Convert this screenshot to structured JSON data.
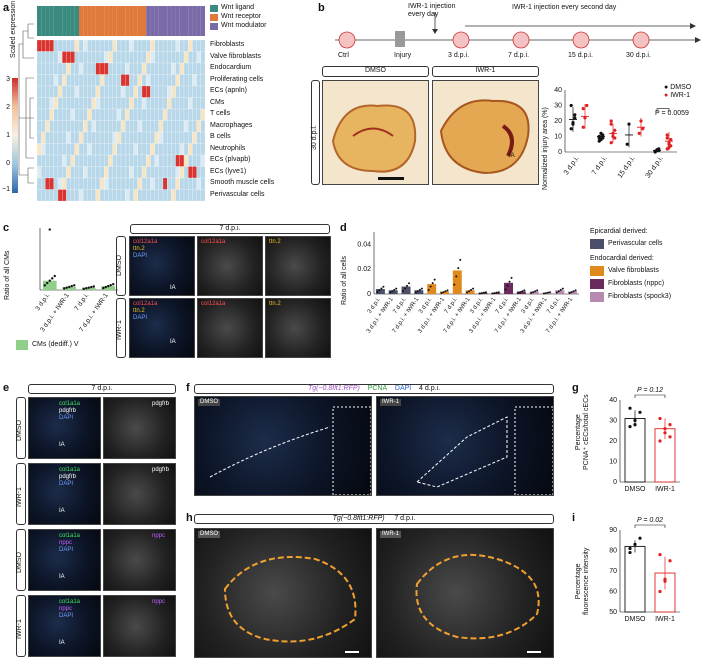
{
  "panel_labels": [
    "a",
    "b",
    "c",
    "d",
    "e",
    "f",
    "g",
    "h",
    "i"
  ],
  "panel_a": {
    "legend": [
      "Wnt ligand",
      "Wnt receptor",
      "Wnt modulator"
    ],
    "legend_colors": [
      "#3a8a80",
      "#e07a3a",
      "#7a6aa8"
    ],
    "colorbar_label": "Scaled expression",
    "colorbar_ticks": [
      "3",
      "2",
      "1",
      "0",
      "−1"
    ],
    "rows": [
      "Fibroblasts",
      "Valve fibroblasts",
      "Endocardium",
      "Proliferating cells",
      "ECs (apnln)",
      "CMs",
      "T cells",
      "Macrophages",
      "B cells",
      "Neutrophils",
      "ECs (plvapb)",
      "ECs (lyve1)",
      "Smooth muscle cells",
      "Perivascular cells"
    ]
  },
  "panel_b": {
    "timeline": {
      "ctrl": "Ctrl",
      "injury": "Injury",
      "inj1": "IWR-1 injection\nevery day",
      "inj2": "IWR-1 injection every second day",
      "timepoints": [
        "3 d.p.i.",
        "7 d.p.i.",
        "15 d.p.i.",
        "30 d.p.i."
      ]
    },
    "image_headers": [
      "DMSO",
      "IWR-1"
    ],
    "side_label": "30 d.p.i.",
    "ia_label": "IA",
    "chart": {
      "ylabel": "Normalized injury area (%)",
      "legend": [
        "DMSO",
        "IWR-1"
      ],
      "pvalue": "P = 0.0059"
    }
  },
  "panel_c": {
    "ylabel": "Ratio of all CMs",
    "legend": "CMs (dediff.) V",
    "header": "7 d.p.i.",
    "rows": [
      "DMSO",
      "IWR-1"
    ],
    "channels_dmso": [
      [
        "col12a1a",
        "ttn.2",
        "DAPI"
      ],
      [
        "col12a1a"
      ],
      [
        "ttn.2"
      ]
    ],
    "ia": "IA"
  },
  "panel_d": {
    "ylabel": "Ratio of all cells",
    "legend_title_1": "Epicardial derived:",
    "legend_title_2": "Endocardial derived:",
    "legend": [
      "Perivascular cells",
      "Valve fibroblasts",
      "Fibroblasts (nppc)",
      "Fibroblasts (spock3)"
    ],
    "legend_colors": [
      "#4a4e69",
      "#e08a1e",
      "#6b2a5e",
      "#b889b0"
    ]
  },
  "panel_e": {
    "header": "7 d.p.i.",
    "rows": [
      "DMSO",
      "IWR-1",
      "DMSO",
      "IWR-1"
    ],
    "merge_labels": [
      [
        "col1a1a",
        "pdgfrb",
        "DAPI"
      ],
      [
        "col1a1a",
        "pdgfrb",
        "DAPI"
      ],
      [
        "col1a1a",
        "nppc",
        "DAPI"
      ],
      [
        "col1a1a",
        "nppc",
        "DAPI"
      ]
    ],
    "single_labels": [
      "pdgfrb",
      "pdgfrb",
      "nppc",
      "nppc"
    ],
    "ia": "IA"
  },
  "panel_f": {
    "header": [
      "Tg(−0.8flt1:RFP)",
      "PCNA",
      "DAPI",
      "4 d.p.i."
    ],
    "images": [
      "DMSO",
      "IWR-1"
    ]
  },
  "panel_g": {
    "ylabel": "Percentage\nPCNA⁺ cECs/total cECs",
    "pvalue": "P = 0.12",
    "xlabels": [
      "DMSO",
      "IWR-1"
    ]
  },
  "panel_h": {
    "header": "Tg(−0.8flt1:RFP)",
    "time": "7 d.p.i.",
    "images": [
      "DMSO",
      "IWR-1"
    ]
  },
  "panel_i": {
    "ylabel": "Percentage\nfluorescence intensity",
    "pvalue": "P = 0.02",
    "xlabels": [
      "DMSO",
      "IWR-1"
    ]
  },
  "chart_data": [
    {
      "type": "scatter",
      "title": "",
      "ylabel": "Normalized injury area (%)",
      "ylim": [
        0,
        40
      ],
      "categories": [
        "3 d.p.i.",
        "7 d.p.i.",
        "15 d.p.i.",
        "30 d.p.i."
      ],
      "yticks": [
        0,
        10,
        20,
        30,
        40
      ],
      "series": [
        {
          "name": "DMSO",
          "color": "#111111",
          "mean": [
            21,
            10,
            11,
            1
          ],
          "sd": [
            8,
            3,
            8,
            1
          ],
          "points": [
            [
              15,
              18,
              24,
              30,
              19,
              22
            ],
            [
              7,
              8,
              9,
              10,
              12,
              11,
              9
            ],
            [
              5,
              18
            ],
            [
              0,
              1,
              2,
              0.5,
              1.5,
              1
            ]
          ]
        },
        {
          "name": "IWR-1",
          "color": "#e02020",
          "mean": [
            23,
            12,
            16,
            7
          ],
          "sd": [
            8,
            6,
            6,
            6
          ],
          "points": [
            [
              16,
              22,
              30,
              28
            ],
            [
              6,
              10,
              14,
              18,
              12,
              9,
              20
            ],
            [
              12,
              20,
              15
            ],
            [
              2,
              5,
              8,
              11,
              6,
              4,
              9,
              3
            ]
          ]
        }
      ]
    },
    {
      "type": "bar",
      "ylabel": "Ratio of all CMs",
      "ylim": [
        0,
        0.8
      ],
      "categories": [
        "3 d.p.i.",
        "3 d.p.i. + IWR-1",
        "7 d.p.i.",
        "7 d.p.i. + IWR-1"
      ],
      "values": [
        0.12,
        0.04,
        0.03,
        0.05
      ],
      "color": "#8fcf8a"
    },
    {
      "type": "bar",
      "ylabel": "Ratio of all cells",
      "ylim": [
        0,
        0.05
      ],
      "yticks": [
        0,
        0.02,
        0.04
      ],
      "categories": [
        "3 d.p.i.",
        "3 d.p.i. + IWR-1",
        "7 d.p.i.",
        "7 d.p.i. + IWR-1"
      ],
      "series": [
        {
          "name": "Perivascular cells",
          "values": [
            0.004,
            0.003,
            0.006,
            0.003
          ]
        },
        {
          "name": "Valve fibroblasts",
          "values": [
            0.008,
            0.002,
            0.019,
            0.003
          ]
        },
        {
          "name": "Fibroblasts (nppc)",
          "values": [
            0.001,
            0.001,
            0.009,
            0.002
          ]
        },
        {
          "name": "Fibroblasts (spock3)",
          "values": [
            0.002,
            0.001,
            0.003,
            0.002
          ]
        }
      ]
    },
    {
      "type": "bar",
      "ylabel": "Percentage PCNA⁺ cECs/total cECs",
      "ylim": [
        0,
        40
      ],
      "yticks": [
        0,
        10,
        20,
        30,
        40
      ],
      "categories": [
        "DMSO",
        "IWR-1"
      ],
      "values": [
        31,
        26
      ],
      "sd": [
        4,
        5
      ],
      "points": [
        [
          27,
          30,
          34,
          36,
          28
        ],
        [
          20,
          24,
          28,
          31,
          26,
          22
        ]
      ]
    },
    {
      "type": "bar",
      "ylabel": "Percentage fluorescence intensity",
      "ylim": [
        50,
        90
      ],
      "yticks": [
        50,
        60,
        70,
        80,
        90
      ],
      "categories": [
        "DMSO",
        "IWR-1"
      ],
      "values": [
        82,
        69
      ],
      "sd": [
        3,
        8
      ],
      "points": [
        [
          79,
          83,
          86,
          81
        ],
        [
          60,
          66,
          75,
          78,
          65
        ]
      ]
    }
  ]
}
